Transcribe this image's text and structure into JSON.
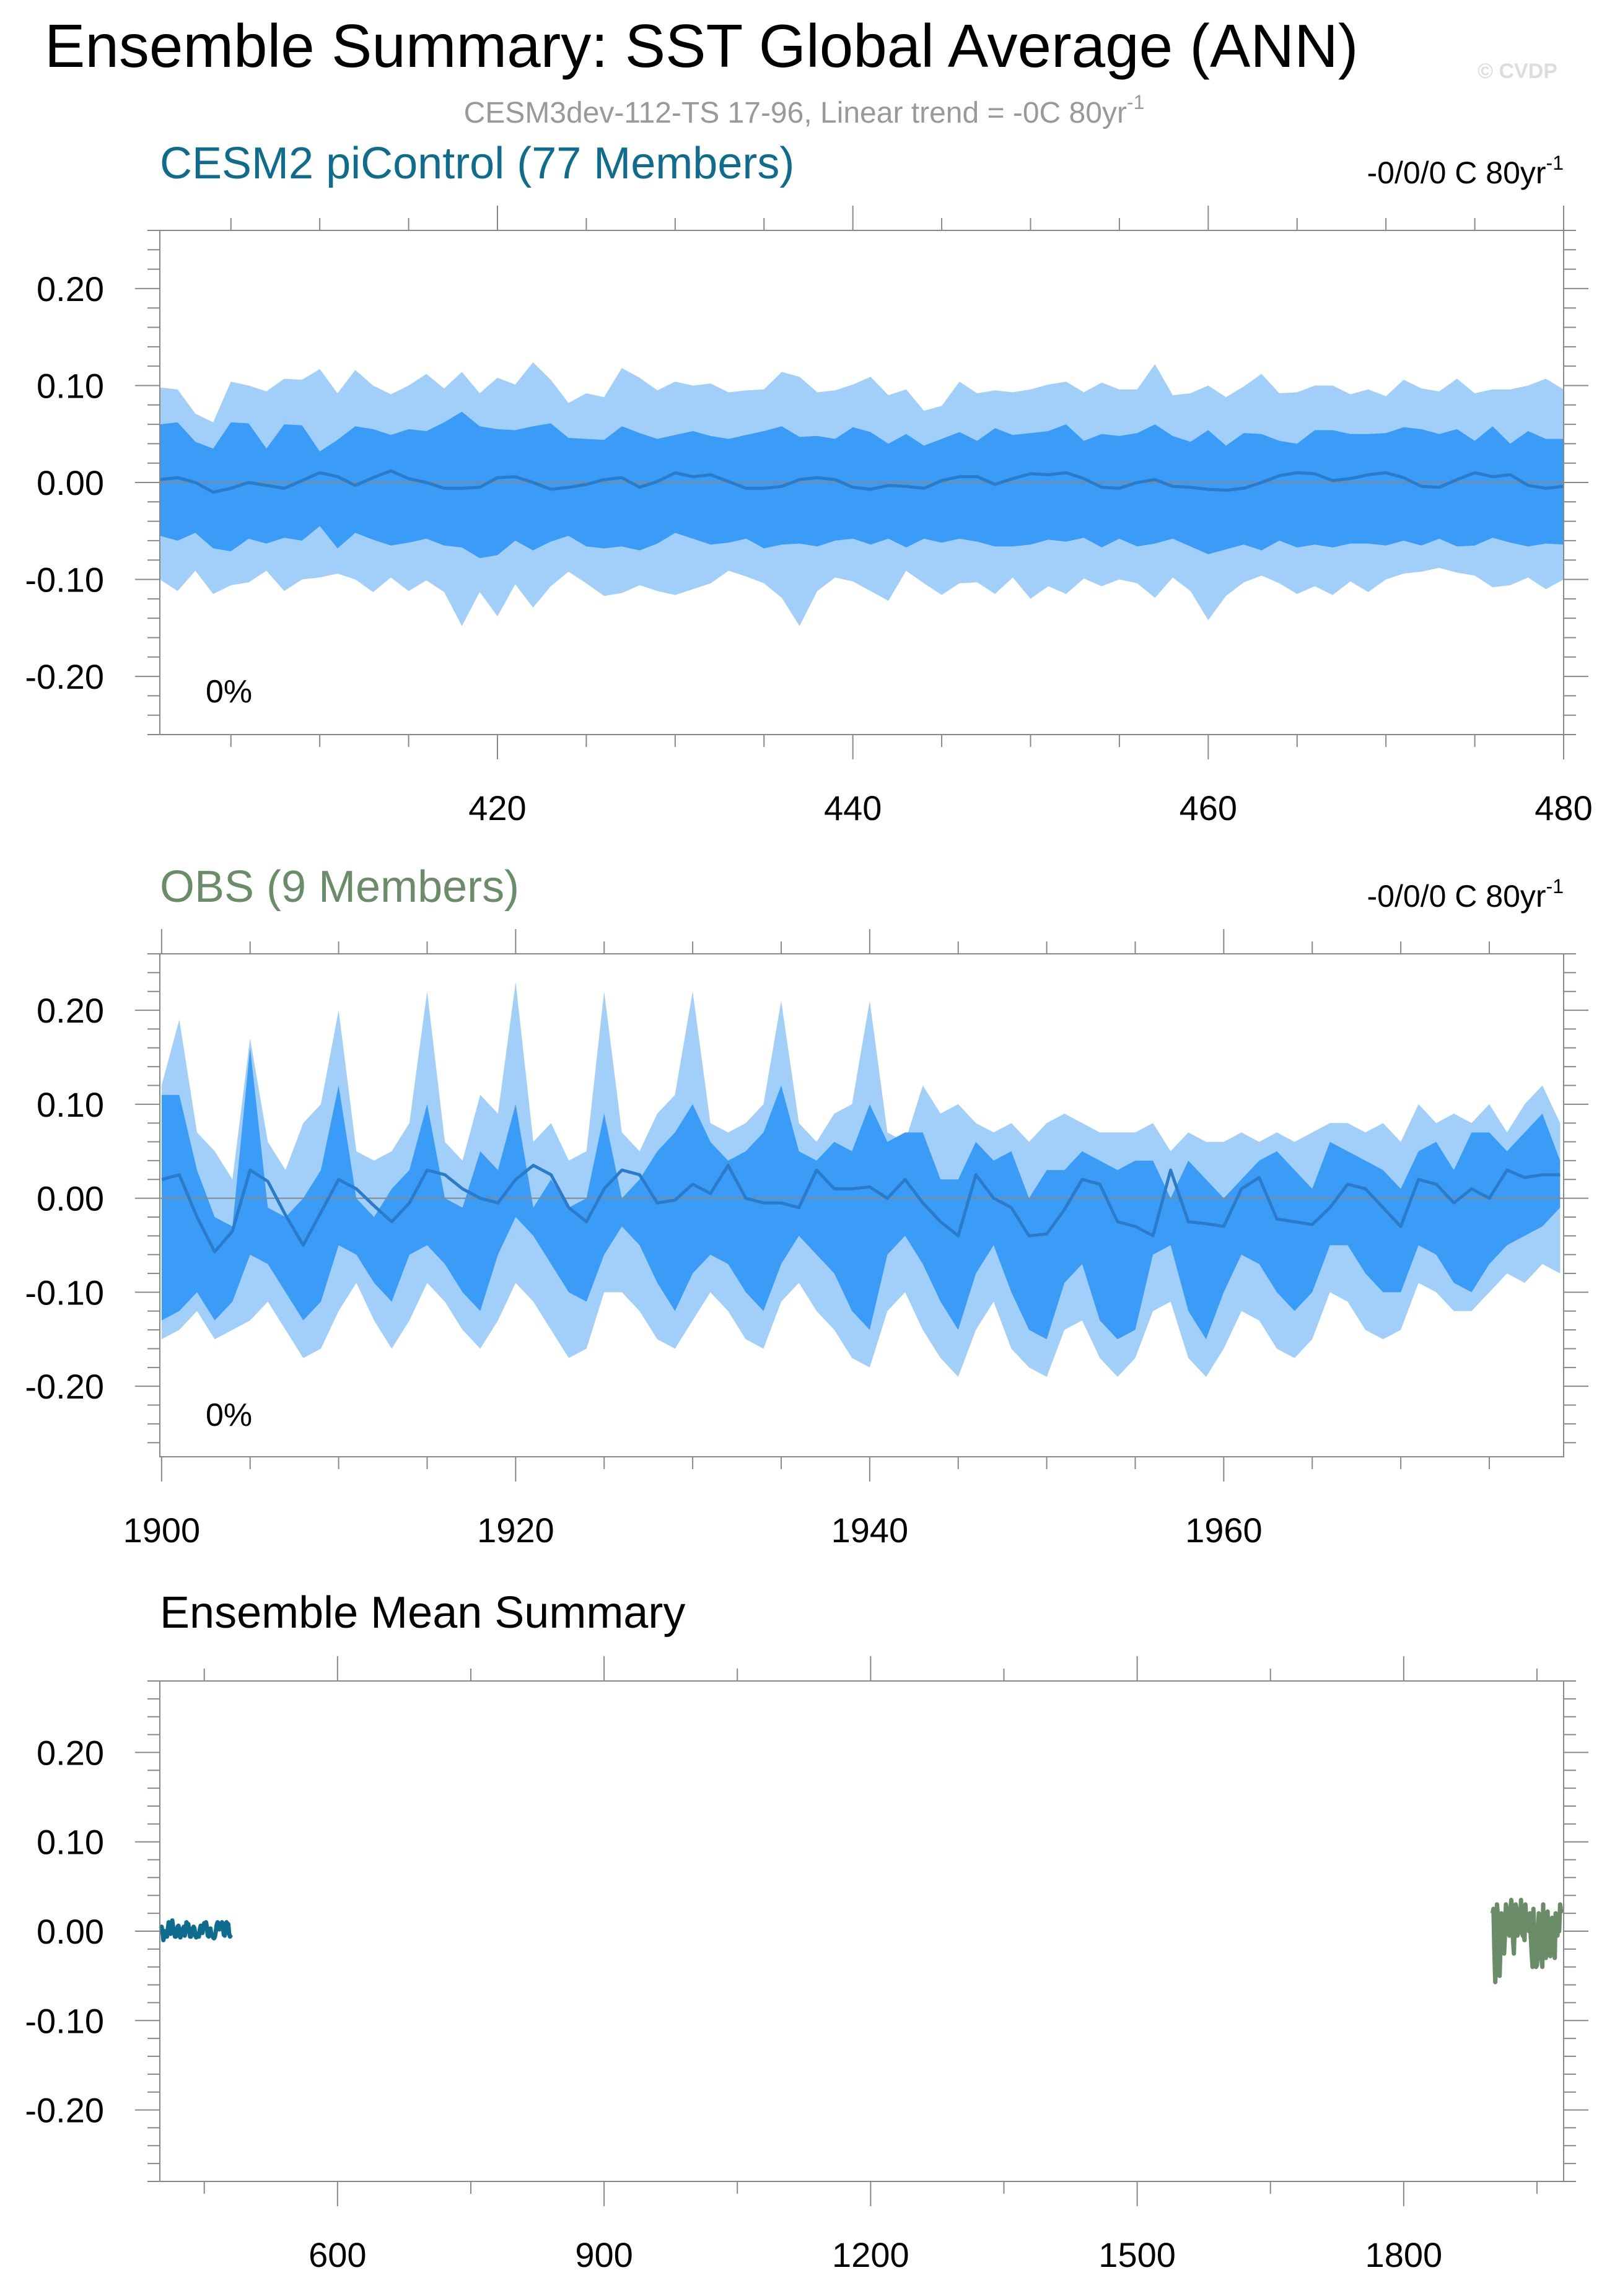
{
  "page": {
    "title": "Ensemble Summary: SST Global Average (ANN)",
    "subtitle_main": "CESM3dev-112-TS 17-96, Linear trend = -0C 80yr",
    "subtitle_sup": "-1",
    "watermark": "© CVDP"
  },
  "colors": {
    "band_outer": "#a2cff9",
    "band_inner": "#3b9cf7",
    "mean_line": "#2b7bcb",
    "cesm2": "#0e6d8f",
    "obs": "#6a8c68"
  },
  "chart_data": [
    {
      "id": "cesm2",
      "type": "area",
      "title": "CESM2 piControl (77 Members)",
      "trend_label": "-0/0/0 C 80yr",
      "trend_sup": "-1",
      "percent_label": "0%",
      "x_start": 401,
      "xlim": [
        401,
        480
      ],
      "ylim": [
        -0.26,
        0.26
      ],
      "x_ticks": [
        420,
        440,
        460,
        480
      ],
      "y_ticks": [
        0.2,
        0.1,
        0.0,
        -0.1,
        -0.2
      ],
      "y_tick_labels": [
        "0.20",
        "0.10",
        "0.00",
        "-0.10",
        "-0.20"
      ],
      "outer_upper": [
        0.098,
        0.096,
        0.071,
        0.062,
        0.104,
        0.1,
        0.094,
        0.107,
        0.106,
        0.117,
        0.092,
        0.116,
        0.1,
        0.091,
        0.1,
        0.112,
        0.097,
        0.114,
        0.092,
        0.108,
        0.101,
        0.124,
        0.106,
        0.082,
        0.092,
        0.088,
        0.118,
        0.108,
        0.095,
        0.104,
        0.1,
        0.102,
        0.093,
        0.095,
        0.096,
        0.114,
        0.109,
        0.093,
        0.095,
        0.101,
        0.109,
        0.09,
        0.096,
        0.074,
        0.079,
        0.104,
        0.092,
        0.095,
        0.093,
        0.096,
        0.101,
        0.104,
        0.093,
        0.103,
        0.096,
        0.096,
        0.122,
        0.09,
        0.092,
        0.1,
        0.088,
        0.099,
        0.112,
        0.092,
        0.093,
        0.1,
        0.1,
        0.091,
        0.096,
        0.089,
        0.106,
        0.097,
        0.094,
        0.107,
        0.092,
        0.096,
        0.096,
        0.1,
        0.107,
        0.096
      ],
      "inner_upper": [
        0.06,
        0.062,
        0.042,
        0.035,
        0.062,
        0.061,
        0.035,
        0.06,
        0.059,
        0.032,
        0.044,
        0.058,
        0.055,
        0.049,
        0.055,
        0.053,
        0.062,
        0.073,
        0.058,
        0.055,
        0.054,
        0.058,
        0.061,
        0.046,
        0.045,
        0.044,
        0.058,
        0.051,
        0.045,
        0.049,
        0.053,
        0.048,
        0.045,
        0.049,
        0.053,
        0.058,
        0.047,
        0.048,
        0.045,
        0.057,
        0.052,
        0.04,
        0.05,
        0.038,
        0.045,
        0.052,
        0.043,
        0.056,
        0.049,
        0.051,
        0.053,
        0.06,
        0.043,
        0.05,
        0.048,
        0.051,
        0.06,
        0.048,
        0.042,
        0.054,
        0.038,
        0.051,
        0.05,
        0.043,
        0.04,
        0.054,
        0.054,
        0.05,
        0.05,
        0.051,
        0.057,
        0.055,
        0.05,
        0.055,
        0.043,
        0.058,
        0.04,
        0.053,
        0.045,
        0.045
      ],
      "mean": [
        0.003,
        0.005,
        0.0,
        -0.01,
        -0.006,
        0.0,
        -0.003,
        -0.006,
        0.002,
        0.01,
        0.006,
        -0.003,
        0.005,
        0.012,
        0.004,
        0.0,
        -0.006,
        -0.006,
        -0.005,
        0.005,
        0.006,
        0.0,
        -0.007,
        -0.005,
        -0.002,
        0.003,
        0.005,
        -0.005,
        0.001,
        0.01,
        0.006,
        0.008,
        0.001,
        -0.006,
        -0.006,
        -0.004,
        0.003,
        0.005,
        0.003,
        -0.005,
        -0.007,
        -0.003,
        -0.004,
        -0.006,
        0.002,
        0.006,
        0.006,
        -0.002,
        0.004,
        0.009,
        0.008,
        0.01,
        0.004,
        -0.005,
        -0.006,
        0.0,
        0.003,
        -0.004,
        -0.005,
        -0.007,
        -0.008,
        -0.006,
        0.0,
        0.007,
        0.01,
        0.009,
        0.002,
        0.004,
        0.008,
        0.01,
        0.005,
        -0.004,
        -0.005,
        0.003,
        0.01,
        0.006,
        0.008,
        -0.003,
        -0.006,
        -0.004
      ],
      "inner_lower": [
        -0.055,
        -0.06,
        -0.052,
        -0.068,
        -0.071,
        -0.058,
        -0.063,
        -0.057,
        -0.06,
        -0.045,
        -0.068,
        -0.052,
        -0.059,
        -0.065,
        -0.062,
        -0.058,
        -0.065,
        -0.067,
        -0.078,
        -0.075,
        -0.06,
        -0.07,
        -0.061,
        -0.055,
        -0.066,
        -0.068,
        -0.066,
        -0.07,
        -0.063,
        -0.052,
        -0.058,
        -0.064,
        -0.062,
        -0.058,
        -0.068,
        -0.064,
        -0.063,
        -0.066,
        -0.06,
        -0.058,
        -0.064,
        -0.058,
        -0.067,
        -0.058,
        -0.062,
        -0.058,
        -0.061,
        -0.066,
        -0.066,
        -0.064,
        -0.059,
        -0.061,
        -0.057,
        -0.067,
        -0.058,
        -0.066,
        -0.063,
        -0.058,
        -0.066,
        -0.074,
        -0.069,
        -0.064,
        -0.07,
        -0.06,
        -0.067,
        -0.064,
        -0.067,
        -0.063,
        -0.063,
        -0.065,
        -0.06,
        -0.065,
        -0.058,
        -0.066,
        -0.065,
        -0.057,
        -0.062,
        -0.066,
        -0.063,
        -0.064
      ],
      "outer_lower": [
        -0.1,
        -0.112,
        -0.091,
        -0.115,
        -0.106,
        -0.103,
        -0.091,
        -0.112,
        -0.1,
        -0.098,
        -0.094,
        -0.1,
        -0.113,
        -0.098,
        -0.112,
        -0.101,
        -0.113,
        -0.148,
        -0.113,
        -0.138,
        -0.105,
        -0.129,
        -0.107,
        -0.092,
        -0.104,
        -0.117,
        -0.114,
        -0.106,
        -0.112,
        -0.116,
        -0.11,
        -0.104,
        -0.091,
        -0.097,
        -0.104,
        -0.119,
        -0.148,
        -0.112,
        -0.098,
        -0.102,
        -0.112,
        -0.122,
        -0.091,
        -0.104,
        -0.116,
        -0.104,
        -0.103,
        -0.115,
        -0.098,
        -0.12,
        -0.107,
        -0.115,
        -0.099,
        -0.107,
        -0.1,
        -0.104,
        -0.119,
        -0.098,
        -0.112,
        -0.142,
        -0.117,
        -0.103,
        -0.096,
        -0.104,
        -0.115,
        -0.107,
        -0.116,
        -0.102,
        -0.113,
        -0.1,
        -0.094,
        -0.092,
        -0.088,
        -0.093,
        -0.096,
        -0.108,
        -0.106,
        -0.098,
        -0.11,
        -0.1
      ]
    },
    {
      "id": "obs",
      "type": "area",
      "title": "OBS (9 Members)",
      "trend_label": "-0/0/0 C 80yr",
      "trend_sup": "-1",
      "percent_label": "0%",
      "x_start": 1900,
      "xlim": [
        1899.9,
        1979.2
      ],
      "ylim": [
        -0.275,
        0.26
      ],
      "x_ticks": [
        1900,
        1920,
        1940,
        1960
      ],
      "y_ticks": [
        0.2,
        0.1,
        0.0,
        -0.1,
        -0.2
      ],
      "y_tick_labels": [
        "0.20",
        "0.10",
        "0.00",
        "-0.10",
        "-0.20"
      ],
      "outer_upper": [
        0.12,
        0.19,
        0.07,
        0.05,
        0.02,
        0.17,
        0.06,
        0.03,
        0.08,
        0.1,
        0.2,
        0.05,
        0.04,
        0.05,
        0.08,
        0.22,
        0.06,
        0.04,
        0.11,
        0.09,
        0.23,
        0.06,
        0.08,
        0.04,
        0.05,
        0.22,
        0.07,
        0.05,
        0.09,
        0.11,
        0.22,
        0.08,
        0.07,
        0.08,
        0.1,
        0.21,
        0.08,
        0.06,
        0.09,
        0.1,
        0.21,
        0.07,
        0.06,
        0.12,
        0.09,
        0.1,
        0.08,
        0.07,
        0.08,
        0.06,
        0.08,
        0.09,
        0.08,
        0.07,
        0.07,
        0.07,
        0.08,
        0.05,
        0.07,
        0.06,
        0.06,
        0.07,
        0.06,
        0.07,
        0.06,
        0.07,
        0.08,
        0.08,
        0.07,
        0.08,
        0.06,
        0.1,
        0.08,
        0.09,
        0.08,
        0.1,
        0.07,
        0.1,
        0.12,
        0.08
      ],
      "inner_upper": [
        0.11,
        0.11,
        0.03,
        -0.02,
        -0.03,
        0.16,
        -0.01,
        -0.02,
        0.0,
        0.03,
        0.12,
        0.0,
        -0.02,
        0.01,
        0.03,
        0.1,
        0.0,
        -0.01,
        0.05,
        0.03,
        0.1,
        -0.01,
        0.02,
        -0.01,
        0.0,
        0.09,
        0.0,
        0.02,
        0.05,
        0.07,
        0.1,
        0.06,
        0.04,
        0.05,
        0.07,
        0.12,
        0.05,
        0.04,
        0.06,
        0.05,
        0.1,
        0.06,
        0.07,
        0.07,
        0.02,
        0.02,
        0.06,
        0.04,
        0.05,
        0.0,
        0.03,
        0.03,
        0.05,
        0.04,
        0.03,
        0.04,
        0.04,
        0.0,
        0.04,
        0.02,
        0.0,
        0.02,
        0.04,
        0.05,
        0.03,
        0.01,
        0.06,
        0.05,
        0.04,
        0.03,
        0.01,
        0.05,
        0.06,
        0.03,
        0.07,
        0.07,
        0.05,
        0.07,
        0.09,
        0.04
      ],
      "mean": [
        0.02,
        0.025,
        -0.02,
        -0.057,
        -0.035,
        0.03,
        0.018,
        -0.018,
        -0.05,
        -0.015,
        0.02,
        0.01,
        -0.008,
        -0.025,
        -0.005,
        0.03,
        0.025,
        0.01,
        0.0,
        -0.005,
        0.02,
        0.035,
        0.025,
        -0.01,
        -0.025,
        0.01,
        0.03,
        0.025,
        -0.005,
        -0.002,
        0.015,
        0.005,
        0.035,
        0.0,
        -0.005,
        -0.005,
        -0.01,
        0.03,
        0.01,
        0.01,
        0.012,
        0.0,
        0.02,
        -0.005,
        -0.025,
        -0.04,
        0.025,
        0.0,
        -0.01,
        -0.04,
        -0.038,
        -0.012,
        0.02,
        0.015,
        -0.025,
        -0.03,
        -0.04,
        0.03,
        -0.025,
        -0.027,
        -0.03,
        0.01,
        0.022,
        -0.022,
        -0.025,
        -0.028,
        -0.01,
        0.015,
        0.01,
        -0.01,
        -0.03,
        0.02,
        0.015,
        -0.005,
        0.01,
        0.0,
        0.03,
        0.022,
        0.025,
        0.025
      ],
      "inner_lower": [
        -0.13,
        -0.12,
        -0.1,
        -0.13,
        -0.11,
        -0.06,
        -0.07,
        -0.1,
        -0.13,
        -0.11,
        -0.05,
        -0.06,
        -0.09,
        -0.11,
        -0.06,
        -0.05,
        -0.07,
        -0.1,
        -0.12,
        -0.06,
        -0.02,
        -0.04,
        -0.07,
        -0.1,
        -0.11,
        -0.06,
        -0.03,
        -0.05,
        -0.09,
        -0.12,
        -0.08,
        -0.06,
        -0.07,
        -0.1,
        -0.12,
        -0.07,
        -0.04,
        -0.06,
        -0.08,
        -0.12,
        -0.14,
        -0.06,
        -0.04,
        -0.07,
        -0.11,
        -0.14,
        -0.08,
        -0.05,
        -0.1,
        -0.14,
        -0.15,
        -0.09,
        -0.07,
        -0.13,
        -0.15,
        -0.14,
        -0.06,
        -0.05,
        -0.12,
        -0.15,
        -0.1,
        -0.06,
        -0.07,
        -0.1,
        -0.12,
        -0.1,
        -0.05,
        -0.05,
        -0.08,
        -0.1,
        -0.1,
        -0.05,
        -0.06,
        -0.09,
        -0.1,
        -0.07,
        -0.05,
        -0.04,
        -0.03,
        -0.01
      ],
      "outer_lower": [
        -0.15,
        -0.14,
        -0.12,
        -0.15,
        -0.14,
        -0.13,
        -0.11,
        -0.14,
        -0.17,
        -0.16,
        -0.12,
        -0.09,
        -0.13,
        -0.16,
        -0.13,
        -0.09,
        -0.11,
        -0.14,
        -0.16,
        -0.13,
        -0.09,
        -0.11,
        -0.14,
        -0.17,
        -0.16,
        -0.1,
        -0.1,
        -0.12,
        -0.15,
        -0.16,
        -0.13,
        -0.1,
        -0.12,
        -0.15,
        -0.16,
        -0.11,
        -0.09,
        -0.12,
        -0.14,
        -0.17,
        -0.18,
        -0.12,
        -0.1,
        -0.14,
        -0.17,
        -0.19,
        -0.14,
        -0.11,
        -0.16,
        -0.18,
        -0.19,
        -0.14,
        -0.13,
        -0.17,
        -0.19,
        -0.17,
        -0.12,
        -0.11,
        -0.17,
        -0.19,
        -0.16,
        -0.12,
        -0.13,
        -0.16,
        -0.17,
        -0.15,
        -0.1,
        -0.11,
        -0.14,
        -0.15,
        -0.14,
        -0.09,
        -0.1,
        -0.12,
        -0.12,
        -0.1,
        -0.08,
        -0.09,
        -0.07,
        -0.08
      ]
    },
    {
      "id": "summary",
      "type": "line",
      "title": "Ensemble Mean Summary",
      "xlim": [
        400,
        1980
      ],
      "ylim": [
        -0.28,
        0.28
      ],
      "x_ticks": [
        600,
        900,
        1200,
        1500,
        1800
      ],
      "y_ticks": [
        0.2,
        0.1,
        0.0,
        -0.1,
        -0.2
      ],
      "y_tick_labels": [
        "0.20",
        "0.10",
        "0.00",
        "-0.10",
        "-0.20"
      ],
      "series": [
        {
          "name": "CESM2 piControl",
          "color_key": "cesm2",
          "x_start": 401,
          "values_ref": "cesm2"
        },
        {
          "name": "OBS",
          "color_key": "obs",
          "x_start": 1900,
          "values_ref": "obs"
        }
      ]
    }
  ]
}
